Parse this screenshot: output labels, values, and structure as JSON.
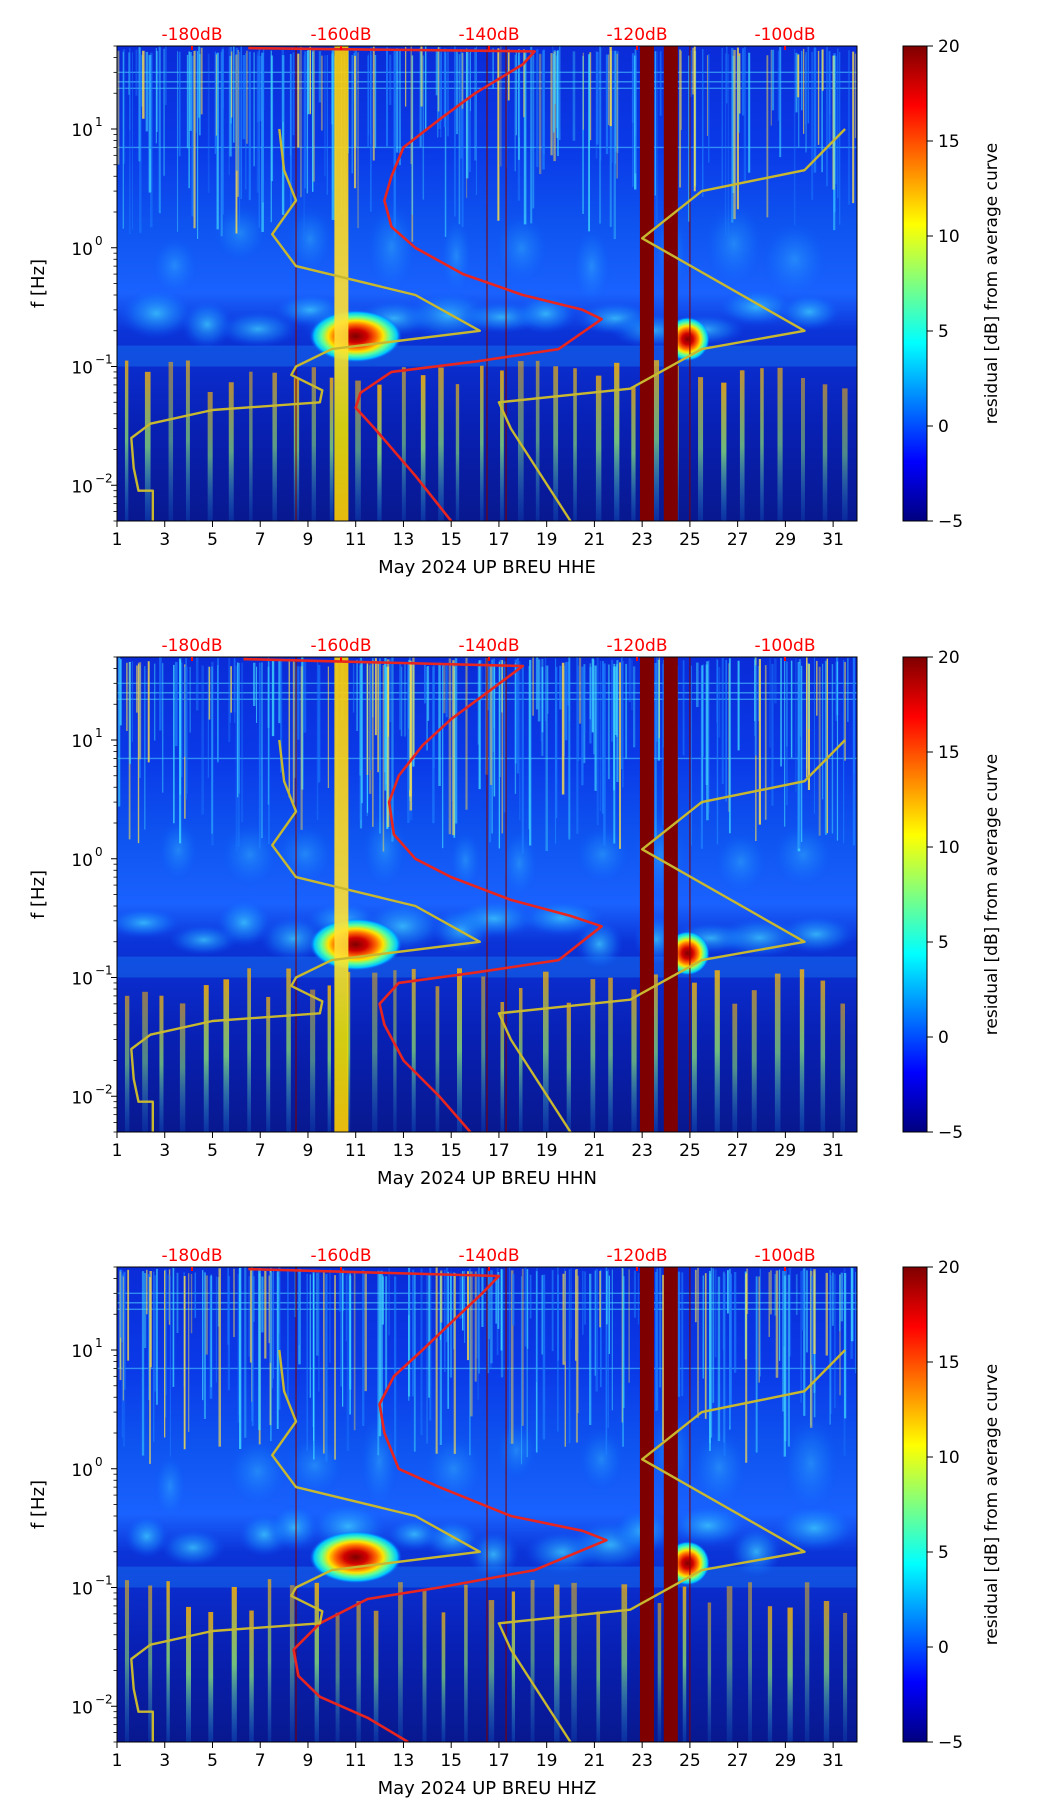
{
  "chart_data": [
    {
      "type": "heatmap",
      "title": "",
      "xlabel": "May 2024 UP BREU  HHE",
      "ylabel": "f [Hz]",
      "x_ticks": [
        "1",
        "3",
        "5",
        "7",
        "9",
        "11",
        "13",
        "15",
        "17",
        "19",
        "21",
        "23",
        "25",
        "27",
        "29",
        "31"
      ],
      "xlim": [
        1,
        32
      ],
      "y_scale": "log",
      "ylim": [
        0.005,
        50
      ],
      "y_ticks": [
        {
          "base": "10",
          "exp": "1",
          "value": 10
        },
        {
          "base": "10",
          "exp": "0",
          "value": 1
        },
        {
          "base": "10",
          "exp": "−1",
          "value": 0.1
        },
        {
          "base": "10",
          "exp": "−2",
          "value": 0.01
        }
      ],
      "top_scale": {
        "labels": [
          "-180dB",
          "-160dB",
          "-140dB",
          "-120dB",
          "-100dB"
        ],
        "color": "#ff0000"
      },
      "colorbar": {
        "label": "residual [dB] from average curve",
        "range": [
          -5,
          20
        ],
        "ticks": [
          "20",
          "15",
          "10",
          "5",
          "0",
          "−5"
        ],
        "tick_values": [
          20,
          15,
          10,
          5,
          0,
          -5
        ],
        "colors": [
          "#00007f",
          "#0000ff",
          "#007fff",
          "#00ffff",
          "#7fff7f",
          "#ffff00",
          "#ff7f00",
          "#ff0000",
          "#7f0000"
        ]
      },
      "saturated_days": [
        10.4,
        23.2,
        24.2
      ],
      "hotspots": [
        {
          "day": 11,
          "f": 0.18
        },
        {
          "day": 24.9,
          "f": 0.17
        }
      ],
      "series": [
        {
          "name": "station PSD (top dB scale)",
          "color": "#e8251f",
          "points": [
            [
              15.0,
              0.005
            ],
            [
              13.5,
              0.012
            ],
            [
              11.8,
              0.03
            ],
            [
              11.0,
              0.045
            ],
            [
              11.2,
              0.06
            ],
            [
              12.5,
              0.09
            ],
            [
              16.0,
              0.11
            ],
            [
              19.5,
              0.14
            ],
            [
              21.3,
              0.25
            ],
            [
              20.5,
              0.3
            ],
            [
              18.0,
              0.4
            ],
            [
              15.5,
              0.6
            ],
            [
              13.5,
              1.0
            ],
            [
              12.5,
              1.5
            ],
            [
              12.2,
              2.5
            ],
            [
              12.5,
              4
            ],
            [
              13.0,
              7
            ],
            [
              14.5,
              12
            ],
            [
              16.0,
              20
            ],
            [
              18.0,
              35
            ],
            [
              18.5,
              45
            ],
            [
              6.5,
              48
            ]
          ]
        },
        {
          "name": "noise model bounds (top dB scale)",
          "color": "#c8b830",
          "points": [
            [
              2.5,
              0.005
            ],
            [
              2.5,
              0.009
            ],
            [
              1.9,
              0.009
            ],
            [
              1.7,
              0.014
            ],
            [
              1.6,
              0.025
            ],
            [
              2.4,
              0.033
            ],
            [
              5.0,
              0.043
            ],
            [
              9.5,
              0.05
            ],
            [
              9.6,
              0.063
            ],
            [
              8.3,
              0.085
            ],
            [
              8.5,
              0.1
            ],
            [
              10.0,
              0.14
            ],
            [
              16.2,
              0.2
            ],
            [
              13.5,
              0.4
            ],
            [
              8.5,
              0.7
            ],
            [
              7.5,
              1.3
            ],
            [
              8.5,
              2.5
            ],
            [
              8.0,
              4.5
            ],
            [
              7.8,
              10
            ]
          ]
        },
        {
          "name": "noise model bounds (upper)",
          "color": "#c8b830",
          "points": [
            [
              20.0,
              0.005
            ],
            [
              17.5,
              0.03
            ],
            [
              17.0,
              0.05
            ],
            [
              22.5,
              0.065
            ],
            [
              25.5,
              0.14
            ],
            [
              29.8,
              0.2
            ],
            [
              23.0,
              1.2
            ],
            [
              25.5,
              3
            ],
            [
              29.8,
              4.5
            ],
            [
              31.5,
              10
            ]
          ]
        }
      ]
    },
    {
      "type": "heatmap",
      "title": "",
      "xlabel": "May 2024 UP BREU  HHN",
      "ylabel": "f [Hz]",
      "x_ticks": [
        "1",
        "3",
        "5",
        "7",
        "9",
        "11",
        "13",
        "15",
        "17",
        "19",
        "21",
        "23",
        "25",
        "27",
        "29",
        "31"
      ],
      "xlim": [
        1,
        32
      ],
      "y_scale": "log",
      "ylim": [
        0.005,
        50
      ],
      "y_ticks": [
        {
          "base": "10",
          "exp": "1",
          "value": 10
        },
        {
          "base": "10",
          "exp": "0",
          "value": 1
        },
        {
          "base": "10",
          "exp": "−1",
          "value": 0.1
        },
        {
          "base": "10",
          "exp": "−2",
          "value": 0.01
        }
      ],
      "top_scale": {
        "labels": [
          "-180dB",
          "-160dB",
          "-140dB",
          "-120dB",
          "-100dB"
        ],
        "color": "#ff0000"
      },
      "colorbar": {
        "label": "residual [dB] from average curve",
        "range": [
          -5,
          20
        ],
        "ticks": [
          "20",
          "15",
          "10",
          "5",
          "0",
          "−5"
        ],
        "tick_values": [
          20,
          15,
          10,
          5,
          0,
          -5
        ],
        "colors": [
          "#00007f",
          "#0000ff",
          "#007fff",
          "#00ffff",
          "#7fff7f",
          "#ffff00",
          "#ff7f00",
          "#ff0000",
          "#7f0000"
        ]
      },
      "saturated_days": [
        10.4,
        23.2,
        24.2
      ],
      "hotspots": [
        {
          "day": 11,
          "f": 0.19
        },
        {
          "day": 24.9,
          "f": 0.16
        }
      ],
      "series": [
        {
          "name": "station PSD (top dB scale)",
          "color": "#e8251f",
          "points": [
            [
              15.8,
              0.005
            ],
            [
              14.5,
              0.01
            ],
            [
              13.0,
              0.02
            ],
            [
              12.2,
              0.04
            ],
            [
              12.0,
              0.06
            ],
            [
              12.8,
              0.09
            ],
            [
              16.0,
              0.11
            ],
            [
              19.5,
              0.14
            ],
            [
              21.3,
              0.27
            ],
            [
              20.0,
              0.33
            ],
            [
              17.5,
              0.45
            ],
            [
              15.0,
              0.7
            ],
            [
              13.5,
              1.0
            ],
            [
              12.6,
              1.6
            ],
            [
              12.4,
              3
            ],
            [
              12.8,
              5
            ],
            [
              13.8,
              9
            ],
            [
              15.0,
              15
            ],
            [
              16.5,
              25
            ],
            [
              18.0,
              42
            ],
            [
              6.3,
              48
            ]
          ]
        },
        {
          "name": "noise model bounds (top dB scale)",
          "color": "#c8b830",
          "points": [
            [
              2.5,
              0.005
            ],
            [
              2.5,
              0.009
            ],
            [
              1.9,
              0.009
            ],
            [
              1.7,
              0.014
            ],
            [
              1.6,
              0.025
            ],
            [
              2.4,
              0.033
            ],
            [
              5.0,
              0.043
            ],
            [
              9.5,
              0.05
            ],
            [
              9.6,
              0.063
            ],
            [
              8.3,
              0.085
            ],
            [
              8.5,
              0.1
            ],
            [
              10.0,
              0.14
            ],
            [
              16.2,
              0.2
            ],
            [
              13.5,
              0.4
            ],
            [
              8.5,
              0.7
            ],
            [
              7.5,
              1.3
            ],
            [
              8.5,
              2.5
            ],
            [
              8.0,
              4.5
            ],
            [
              7.8,
              10
            ]
          ]
        },
        {
          "name": "noise model bounds (upper)",
          "color": "#c8b830",
          "points": [
            [
              20.0,
              0.005
            ],
            [
              17.5,
              0.03
            ],
            [
              17.0,
              0.05
            ],
            [
              22.5,
              0.065
            ],
            [
              25.5,
              0.14
            ],
            [
              29.8,
              0.2
            ],
            [
              23.0,
              1.2
            ],
            [
              25.5,
              3
            ],
            [
              29.8,
              4.5
            ],
            [
              31.5,
              10
            ]
          ]
        }
      ]
    },
    {
      "type": "heatmap",
      "title": "",
      "xlabel": "May 2024 UP BREU  HHZ",
      "ylabel": "f [Hz]",
      "x_ticks": [
        "1",
        "3",
        "5",
        "7",
        "9",
        "11",
        "13",
        "15",
        "17",
        "19",
        "21",
        "23",
        "25",
        "27",
        "29",
        "31"
      ],
      "xlim": [
        1,
        32
      ],
      "y_scale": "log",
      "ylim": [
        0.005,
        50
      ],
      "y_ticks": [
        {
          "base": "10",
          "exp": "1",
          "value": 10
        },
        {
          "base": "10",
          "exp": "0",
          "value": 1
        },
        {
          "base": "10",
          "exp": "−1",
          "value": 0.1
        },
        {
          "base": "10",
          "exp": "−2",
          "value": 0.01
        }
      ],
      "top_scale": {
        "labels": [
          "-180dB",
          "-160dB",
          "-140dB",
          "-120dB",
          "-100dB"
        ],
        "color": "#ff0000"
      },
      "colorbar": {
        "label": "residual [dB] from average curve",
        "range": [
          -5,
          20
        ],
        "ticks": [
          "20",
          "15",
          "10",
          "5",
          "0",
          "−5"
        ],
        "tick_values": [
          20,
          15,
          10,
          5,
          0,
          -5
        ],
        "colors": [
          "#00007f",
          "#0000ff",
          "#007fff",
          "#00ffff",
          "#7fff7f",
          "#ffff00",
          "#ff7f00",
          "#ff0000",
          "#7f0000"
        ]
      },
      "saturated_days": [
        23.2,
        24.2
      ],
      "hotspots": [
        {
          "day": 11,
          "f": 0.18
        },
        {
          "day": 24.9,
          "f": 0.16
        }
      ],
      "series": [
        {
          "name": "station PSD (top dB scale)",
          "color": "#e8251f",
          "points": [
            [
              13.2,
              0.005
            ],
            [
              11.5,
              0.008
            ],
            [
              9.5,
              0.012
            ],
            [
              8.6,
              0.018
            ],
            [
              8.4,
              0.03
            ],
            [
              9.5,
              0.05
            ],
            [
              11.5,
              0.08
            ],
            [
              14.5,
              0.1
            ],
            [
              18.5,
              0.14
            ],
            [
              21.5,
              0.25
            ],
            [
              20.5,
              0.3
            ],
            [
              17.5,
              0.4
            ],
            [
              14.5,
              0.7
            ],
            [
              12.8,
              1.0
            ],
            [
              12.2,
              2
            ],
            [
              12.0,
              3.5
            ],
            [
              12.6,
              6
            ],
            [
              13.8,
              10
            ],
            [
              15.0,
              17
            ],
            [
              16.3,
              30
            ],
            [
              17.0,
              42
            ],
            [
              6.5,
              48
            ]
          ]
        },
        {
          "name": "noise model bounds (top dB scale)",
          "color": "#c8b830",
          "points": [
            [
              2.5,
              0.005
            ],
            [
              2.5,
              0.009
            ],
            [
              1.9,
              0.009
            ],
            [
              1.7,
              0.014
            ],
            [
              1.6,
              0.025
            ],
            [
              2.4,
              0.033
            ],
            [
              5.0,
              0.043
            ],
            [
              9.5,
              0.05
            ],
            [
              9.6,
              0.063
            ],
            [
              8.3,
              0.085
            ],
            [
              8.5,
              0.1
            ],
            [
              10.0,
              0.14
            ],
            [
              16.2,
              0.2
            ],
            [
              13.5,
              0.4
            ],
            [
              8.5,
              0.7
            ],
            [
              7.5,
              1.3
            ],
            [
              8.5,
              2.5
            ],
            [
              8.0,
              4.5
            ],
            [
              7.8,
              10
            ]
          ]
        },
        {
          "name": "noise model bounds (upper)",
          "color": "#c8b830",
          "points": [
            [
              20.0,
              0.005
            ],
            [
              17.5,
              0.03
            ],
            [
              17.0,
              0.05
            ],
            [
              22.5,
              0.065
            ],
            [
              25.5,
              0.14
            ],
            [
              29.8,
              0.2
            ],
            [
              23.0,
              1.2
            ],
            [
              25.5,
              3
            ],
            [
              29.8,
              4.5
            ],
            [
              31.5,
              10
            ]
          ]
        }
      ]
    }
  ]
}
